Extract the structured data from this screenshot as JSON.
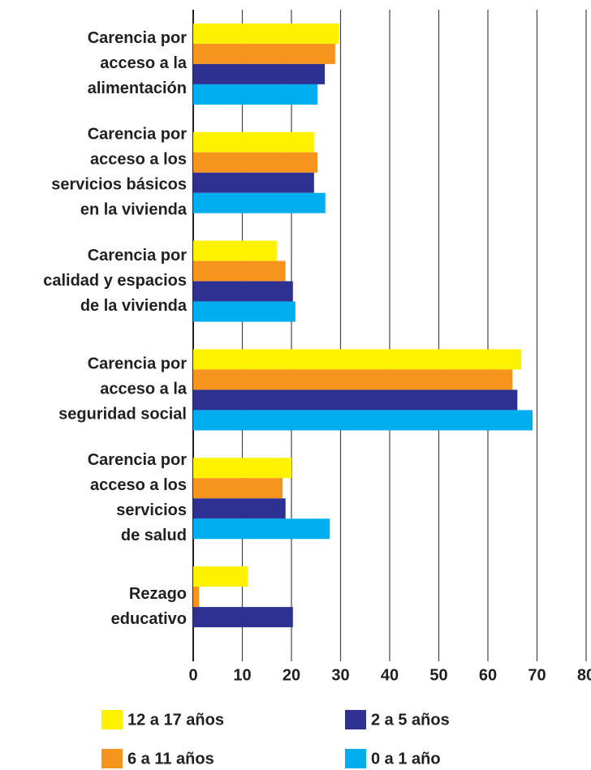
{
  "chart_data": {
    "type": "bar",
    "orientation": "horizontal",
    "categories": [
      [
        "Carencia por",
        "acceso a la",
        "alimentación"
      ],
      [
        "Carencia por",
        "acceso a los",
        "servicios básicos",
        "en la vivienda"
      ],
      [
        "Carencia por",
        "calidad y espacios",
        "de la vivienda"
      ],
      [
        "Carencia por",
        "acceso a la",
        "seguridad social"
      ],
      [
        "Carencia por",
        "acceso a los",
        "servicios",
        "de salud"
      ],
      [
        "Rezago",
        "educativo"
      ]
    ],
    "series": [
      {
        "name": "12 a 17 años",
        "color": "#fff200",
        "values": [
          29.6,
          24.6,
          17,
          66.8,
          20,
          11.1
        ]
      },
      {
        "name": "6 a 11 años",
        "color": "#f7941d",
        "values": [
          28.9,
          25.3,
          18.8,
          65,
          18.2,
          1.2
        ]
      },
      {
        "name": "2 a 5 años",
        "color": "#2e3192",
        "values": [
          26.8,
          24.6,
          20.3,
          66,
          18.8,
          20.3
        ]
      },
      {
        "name": "0 a 1 año",
        "color": "#00aeef",
        "values": [
          25.3,
          26.9,
          20.8,
          69.1,
          27.8,
          null
        ]
      }
    ],
    "xlim": [
      0,
      80
    ],
    "xticks": [
      0,
      10,
      20,
      30,
      40,
      50,
      60,
      70,
      80
    ],
    "grid": true
  }
}
